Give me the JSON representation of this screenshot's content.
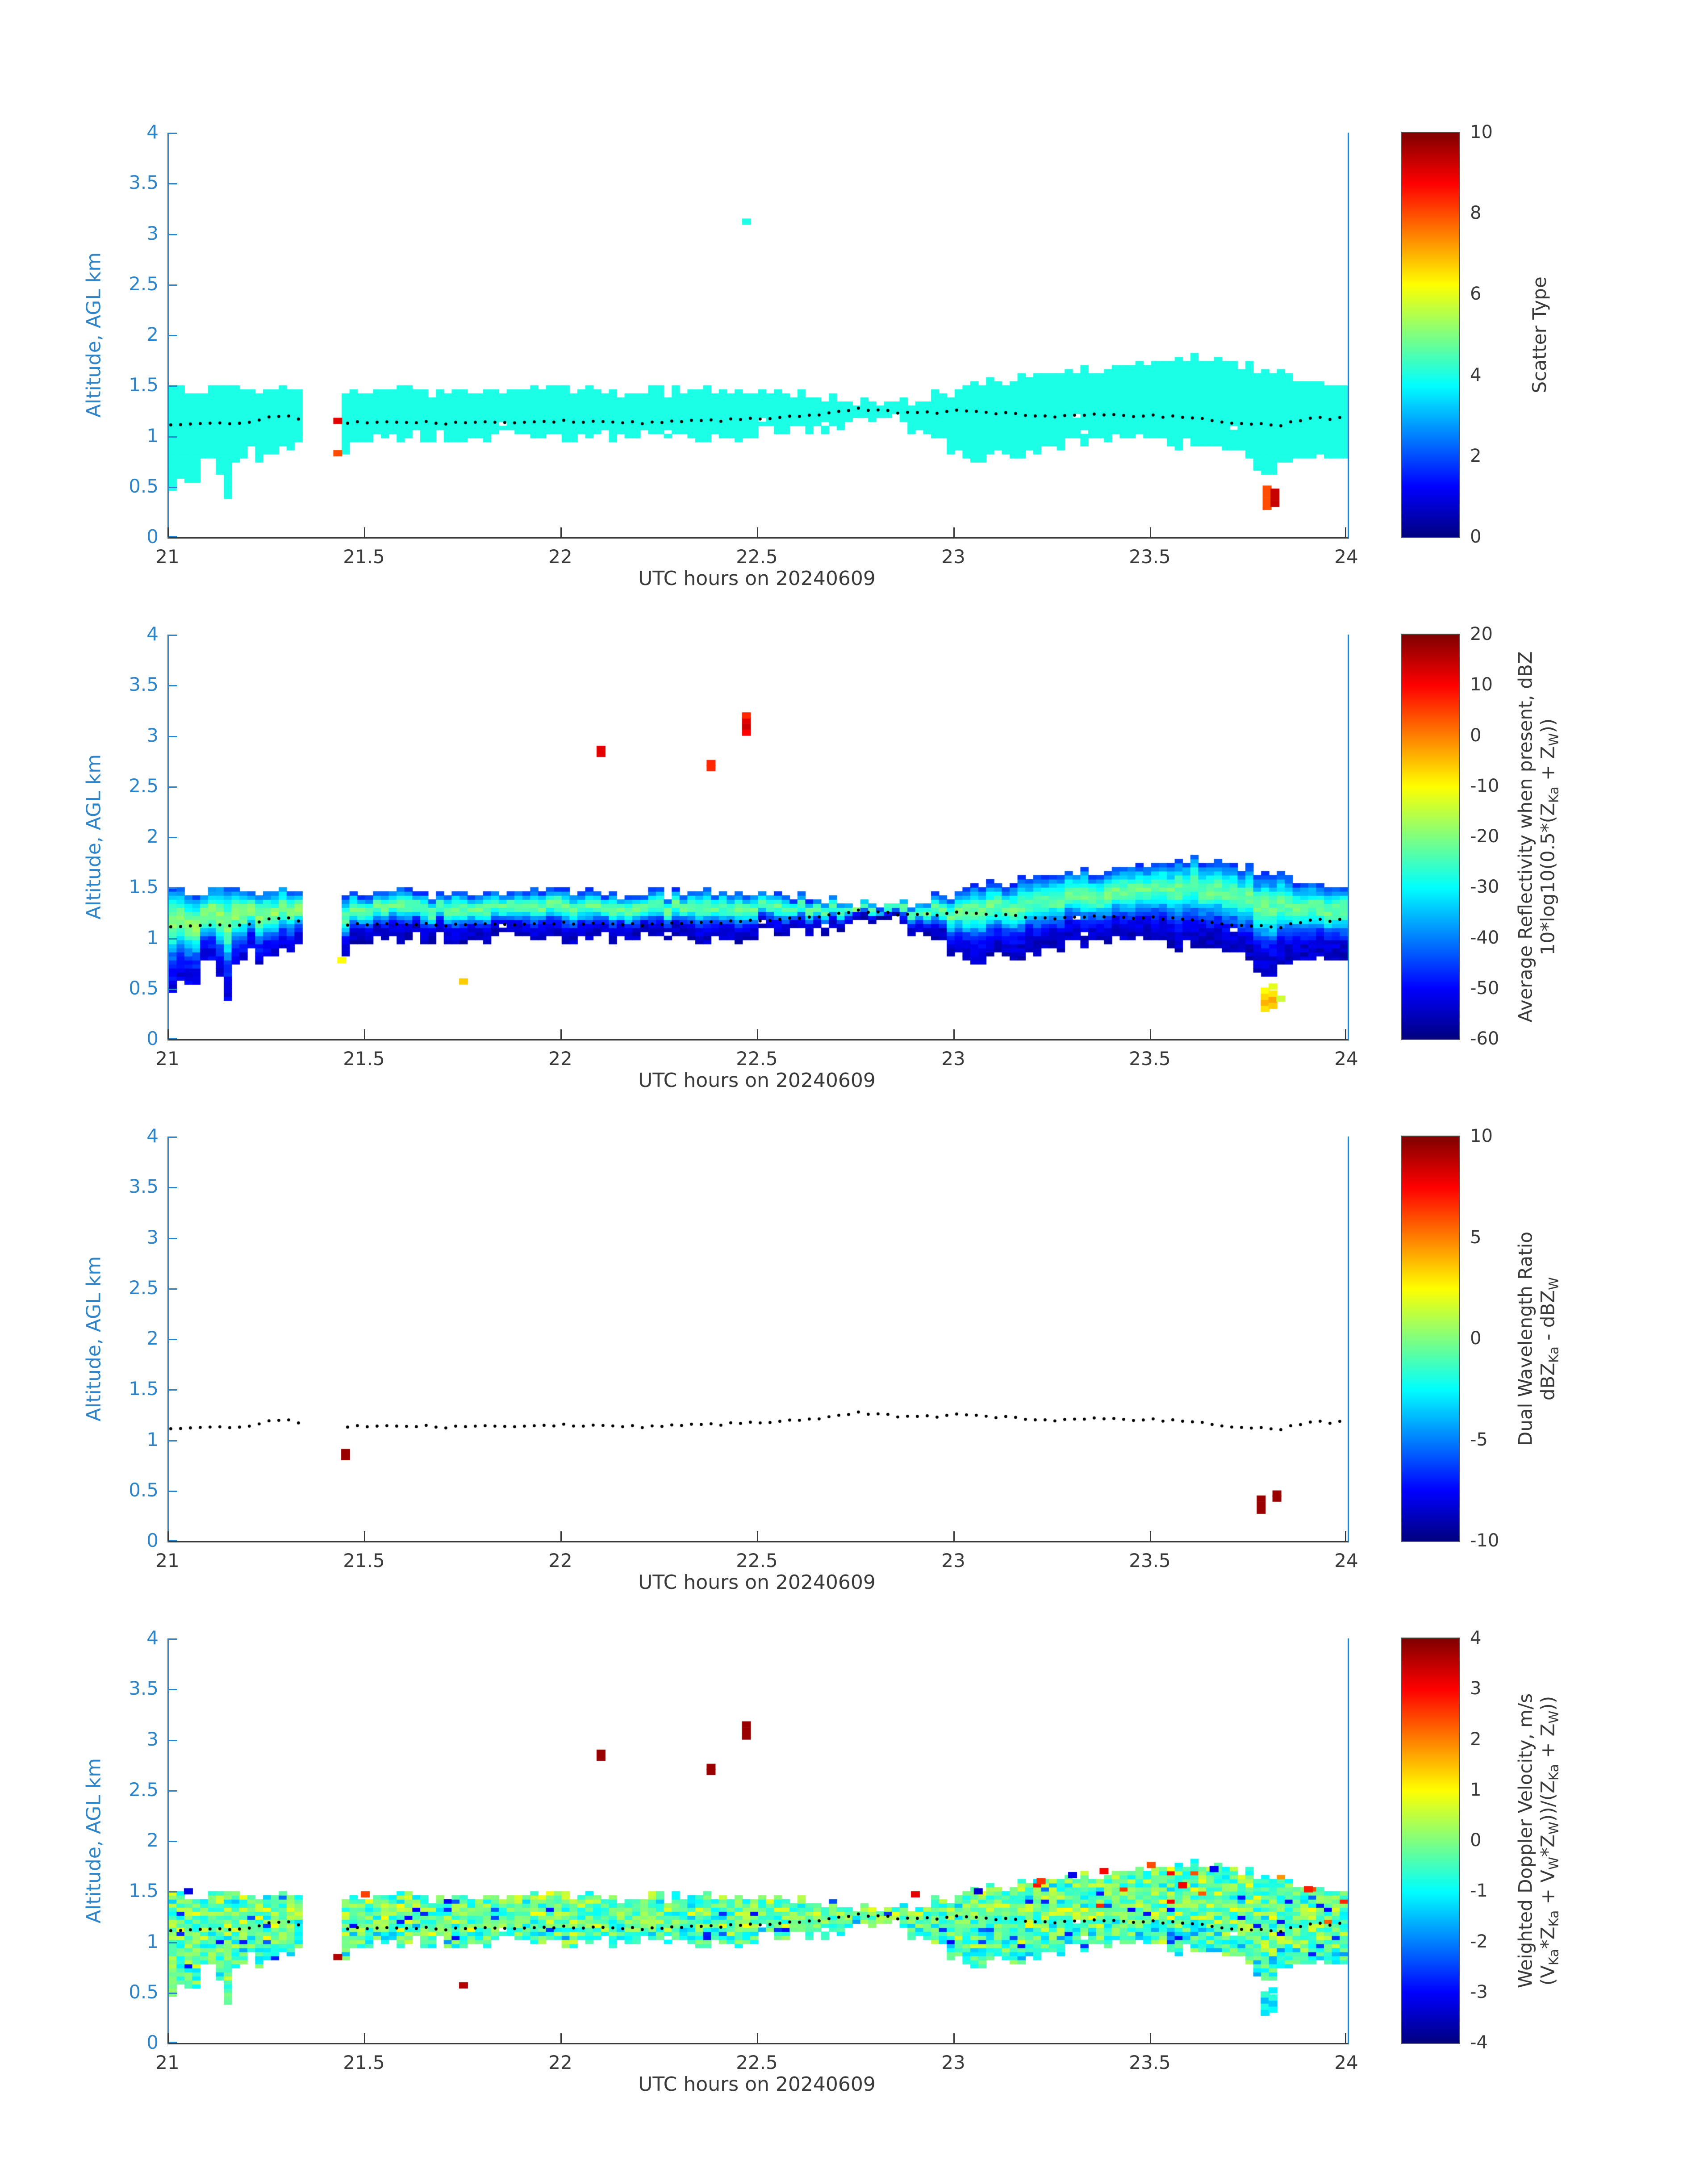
{
  "figure": {
    "xlabel": "UTC hours on 20240609",
    "ylabel": "Altitude, AGL km",
    "x_ticks": [
      21,
      21.5,
      22,
      22.5,
      23,
      23.5,
      24
    ],
    "y_ticks": [
      0,
      0.5,
      1,
      1.5,
      2,
      2.5,
      3,
      3.5,
      4
    ],
    "x_range": [
      21,
      24
    ],
    "y_range": [
      0,
      4
    ]
  },
  "colors": {
    "axis_y": "#2e84c8",
    "axis_x": "#3a3a3a",
    "mean_dot": "#000000",
    "background": "#ffffff",
    "colormap_jet_stops": [
      "#00008f",
      "#0000ff",
      "#00ffff",
      "#ffff00",
      "#ff0000",
      "#800000"
    ]
  },
  "cloud_mask": {
    "band_top": [
      [
        21.0,
        1.5
      ],
      [
        21.08,
        1.44
      ],
      [
        21.18,
        1.5
      ],
      [
        21.3,
        1.47
      ],
      [
        21.33,
        1.45
      ],
      [
        21.44,
        1.42
      ],
      [
        21.55,
        1.46
      ],
      [
        21.7,
        1.42
      ],
      [
        21.85,
        1.44
      ],
      [
        22.0,
        1.48
      ],
      [
        22.15,
        1.42
      ],
      [
        22.3,
        1.45
      ],
      [
        22.45,
        1.43
      ],
      [
        22.6,
        1.41
      ],
      [
        22.72,
        1.38
      ],
      [
        22.8,
        1.33
      ],
      [
        22.88,
        1.34
      ],
      [
        23.0,
        1.45
      ],
      [
        23.1,
        1.52
      ],
      [
        23.2,
        1.58
      ],
      [
        23.3,
        1.65
      ],
      [
        23.42,
        1.68
      ],
      [
        23.52,
        1.73
      ],
      [
        23.6,
        1.8
      ],
      [
        23.68,
        1.74
      ],
      [
        23.78,
        1.66
      ],
      [
        23.86,
        1.58
      ],
      [
        23.94,
        1.52
      ],
      [
        24.0,
        1.5
      ]
    ],
    "band_bottom": [
      [
        21.0,
        0.6
      ],
      [
        21.04,
        0.48
      ],
      [
        21.1,
        0.68
      ],
      [
        21.15,
        0.5
      ],
      [
        21.2,
        0.82
      ],
      [
        21.27,
        0.88
      ],
      [
        21.33,
        1.0
      ],
      [
        21.44,
        0.8
      ],
      [
        21.5,
        1.0
      ],
      [
        21.62,
        1.05
      ],
      [
        21.75,
        0.98
      ],
      [
        21.9,
        1.03
      ],
      [
        22.05,
        1.0
      ],
      [
        22.2,
        1.03
      ],
      [
        22.35,
        1.0
      ],
      [
        22.5,
        1.05
      ],
      [
        22.65,
        1.1
      ],
      [
        22.78,
        1.16
      ],
      [
        22.85,
        1.18
      ],
      [
        22.92,
        1.05
      ],
      [
        23.0,
        0.88
      ],
      [
        23.05,
        0.72
      ],
      [
        23.1,
        0.9
      ],
      [
        23.15,
        0.78
      ],
      [
        23.22,
        0.92
      ],
      [
        23.35,
        0.97
      ],
      [
        23.5,
        1.0
      ],
      [
        23.6,
        0.92
      ],
      [
        23.7,
        0.95
      ],
      [
        23.76,
        0.75
      ],
      [
        23.8,
        0.58
      ],
      [
        23.85,
        0.8
      ],
      [
        23.92,
        0.78
      ],
      [
        24.0,
        0.85
      ]
    ],
    "gaps": [
      [
        21.335,
        21.435
      ]
    ]
  },
  "mean_line": {
    "points": [
      [
        21.0,
        1.1
      ],
      [
        21.1,
        1.12
      ],
      [
        21.2,
        1.14
      ],
      [
        21.28,
        1.2
      ],
      [
        21.32,
        1.18
      ],
      [
        21.45,
        1.12
      ],
      [
        21.55,
        1.15
      ],
      [
        21.7,
        1.13
      ],
      [
        21.85,
        1.14
      ],
      [
        22.0,
        1.15
      ],
      [
        22.15,
        1.13
      ],
      [
        22.3,
        1.14
      ],
      [
        22.45,
        1.16
      ],
      [
        22.55,
        1.18
      ],
      [
        22.65,
        1.2
      ],
      [
        22.75,
        1.27
      ],
      [
        22.8,
        1.25
      ],
      [
        22.9,
        1.22
      ],
      [
        23.0,
        1.25
      ],
      [
        23.1,
        1.23
      ],
      [
        23.25,
        1.2
      ],
      [
        23.4,
        1.21
      ],
      [
        23.55,
        1.19
      ],
      [
        23.65,
        1.16
      ],
      [
        23.75,
        1.12
      ],
      [
        23.82,
        1.1
      ],
      [
        23.9,
        1.17
      ],
      [
        24.0,
        1.18
      ]
    ],
    "gaps": [
      [
        21.335,
        21.435
      ]
    ]
  },
  "chart_data": [
    {
      "type": "heatmap",
      "name": "scatter-type",
      "colorbar_label_lines": [
        "Scatter Type"
      ],
      "colorbar_ticks": [
        0,
        2,
        4,
        6,
        8,
        10
      ],
      "colorbar_range": [
        0,
        10
      ],
      "x_range": [
        21,
        24
      ],
      "y_range": [
        0,
        4
      ],
      "has_band": true,
      "band_value_model": "constant4",
      "special_cells": [
        [
          22.47,
          3.12,
          4
        ],
        [
          21.43,
          1.15,
          9
        ],
        [
          21.43,
          0.83,
          8
        ],
        [
          23.795,
          0.3,
          8
        ],
        [
          23.795,
          0.36,
          8
        ],
        [
          23.795,
          0.42,
          8
        ],
        [
          23.795,
          0.48,
          8
        ],
        [
          23.815,
          0.33,
          9.3
        ],
        [
          23.815,
          0.39,
          9.3
        ],
        [
          23.815,
          0.45,
          9.3
        ]
      ]
    },
    {
      "type": "heatmap",
      "name": "average-reflectivity",
      "colorbar_label_lines": [
        "Average Reflectivity when present, dBZ",
        "10*log10(0.5*(Z_{Ka} + Z_{W}))"
      ],
      "colorbar_ticks": [
        20,
        10,
        0,
        -10,
        -20,
        -30,
        -40,
        -50,
        -60
      ],
      "colorbar_range": [
        -60,
        20
      ],
      "x_range": [
        21,
        24
      ],
      "y_range": [
        0,
        4
      ],
      "has_band": true,
      "band_value_model": "reflectivity",
      "special_cells": [
        [
          22.1,
          2.82,
          12
        ],
        [
          22.1,
          2.87,
          12
        ],
        [
          22.38,
          2.68,
          7
        ],
        [
          22.38,
          2.73,
          7
        ],
        [
          22.47,
          3.03,
          10
        ],
        [
          22.47,
          3.09,
          14
        ],
        [
          22.47,
          3.15,
          12
        ],
        [
          22.47,
          3.2,
          7
        ],
        [
          21.75,
          0.57,
          -6
        ],
        [
          21.44,
          0.78,
          -10
        ],
        [
          23.79,
          0.3,
          -8
        ],
        [
          23.79,
          0.36,
          -4
        ],
        [
          23.79,
          0.42,
          -7
        ],
        [
          23.79,
          0.48,
          -10
        ],
        [
          23.81,
          0.33,
          -6
        ],
        [
          23.81,
          0.39,
          -3
        ],
        [
          23.81,
          0.45,
          -8
        ],
        [
          23.81,
          0.52,
          -12
        ],
        [
          23.83,
          0.4,
          -14
        ]
      ]
    },
    {
      "type": "heatmap",
      "name": "dual-wavelength-ratio",
      "colorbar_label_lines": [
        "Dual Wavelength Ratio",
        "dBZ_{Ka} - dBZ_{W}"
      ],
      "colorbar_ticks": [
        10,
        5,
        0,
        -5,
        -10
      ],
      "colorbar_range": [
        -10,
        10
      ],
      "x_range": [
        21,
        24
      ],
      "y_range": [
        0,
        4
      ],
      "has_band": false,
      "band_value_model": "none",
      "special_cells": [
        [
          21.45,
          0.83,
          9.5
        ],
        [
          21.45,
          0.88,
          9.5
        ],
        [
          23.78,
          0.3,
          9.5
        ],
        [
          23.78,
          0.36,
          9.5
        ],
        [
          23.78,
          0.42,
          9.5
        ],
        [
          23.82,
          0.42,
          9.5
        ],
        [
          23.82,
          0.47,
          9.5
        ]
      ]
    },
    {
      "type": "heatmap",
      "name": "weighted-doppler-velocity",
      "colorbar_label_lines": [
        "Weighted Doppler Velocity, m/s",
        "(V_{Ka}*Z_{Ka} + V_{W}*Z_{W}))/(Z_{Ka} + Z_{W}))"
      ],
      "colorbar_ticks": [
        4,
        3,
        2,
        1,
        0,
        -1,
        -2,
        -3,
        -4
      ],
      "colorbar_range": [
        -4,
        4
      ],
      "x_range": [
        21,
        24
      ],
      "y_range": [
        0,
        4
      ],
      "has_band": true,
      "band_value_model": "doppler",
      "special_cells": [
        [
          22.1,
          2.82,
          3.8
        ],
        [
          22.1,
          2.87,
          3.8
        ],
        [
          22.38,
          2.68,
          3.8
        ],
        [
          22.38,
          2.73,
          3.8
        ],
        [
          22.47,
          3.03,
          3.8
        ],
        [
          22.47,
          3.09,
          3.8
        ],
        [
          22.47,
          3.15,
          3.8
        ],
        [
          21.75,
          0.57,
          3.6
        ],
        [
          21.43,
          0.85,
          3.6
        ],
        [
          23.79,
          0.3,
          -1.2
        ],
        [
          23.79,
          0.36,
          -0.8
        ],
        [
          23.79,
          0.42,
          -1.5
        ],
        [
          23.79,
          0.48,
          -0.6
        ],
        [
          23.81,
          0.33,
          -1.0
        ],
        [
          23.81,
          0.39,
          -1.4
        ],
        [
          23.81,
          0.45,
          -0.7
        ],
        [
          23.81,
          0.52,
          -1.1
        ],
        [
          22.9,
          1.47,
          3.2
        ],
        [
          23.06,
          1.5,
          -3.4
        ],
        [
          23.22,
          1.6,
          2.6
        ],
        [
          23.3,
          1.66,
          -3.2
        ],
        [
          23.38,
          1.7,
          3.0
        ],
        [
          23.5,
          1.76,
          2.4
        ],
        [
          23.58,
          1.56,
          3.1
        ],
        [
          23.66,
          1.72,
          -3.0
        ],
        [
          23.9,
          1.52,
          2.8
        ],
        [
          21.05,
          1.5,
          -3.2
        ],
        [
          21.5,
          1.47,
          2.5
        ]
      ]
    }
  ]
}
